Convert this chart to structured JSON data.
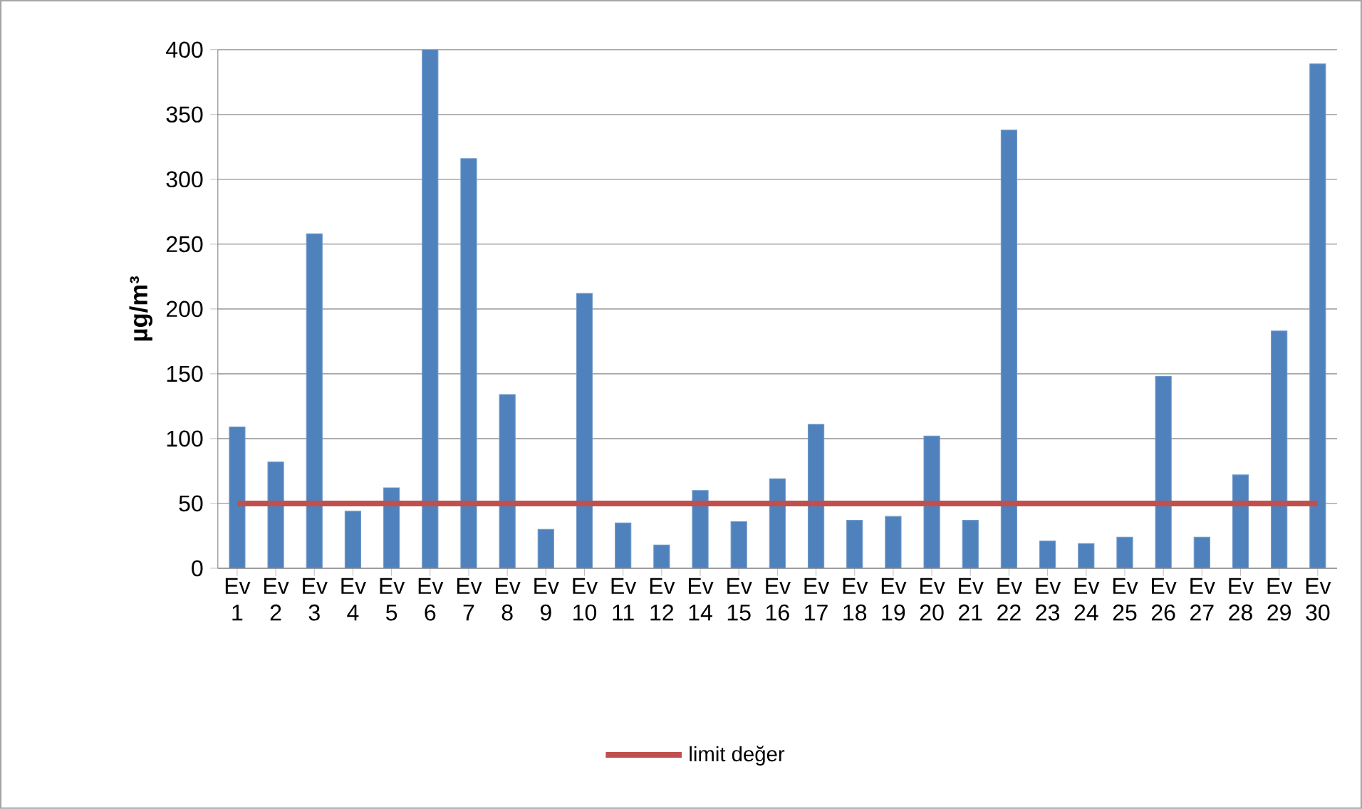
{
  "chart_data": {
    "type": "bar",
    "ylabel": "µg/m³",
    "categories": [
      "Ev 1",
      "Ev 2",
      "Ev 3",
      "Ev 4",
      "Ev 5",
      "Ev 6",
      "Ev 7",
      "Ev 8",
      "Ev 9",
      "Ev 10",
      "Ev 11",
      "Ev 12",
      "Ev 14",
      "Ev 15",
      "Ev 16",
      "Ev 17",
      "Ev 18",
      "Ev 19",
      "Ev 20",
      "Ev 21",
      "Ev 22",
      "Ev 23",
      "Ev 24",
      "Ev 25",
      "Ev 26",
      "Ev 27",
      "Ev 28",
      "Ev 29",
      "Ev 30"
    ],
    "series": [
      {
        "color": "#4f81bd",
        "values": [
          109,
          82,
          258,
          44,
          62,
          400,
          316,
          134,
          30,
          212,
          35,
          18,
          60,
          36,
          69,
          111,
          37,
          40,
          102,
          37,
          338,
          21,
          19,
          24,
          148,
          24,
          72,
          183,
          389
        ]
      },
      {
        "type": "line",
        "name": "limit değer",
        "color": "#c0504d",
        "values": [
          50,
          50,
          50,
          50,
          50,
          50,
          50,
          50,
          50,
          50,
          50,
          50,
          50,
          50,
          50,
          50,
          50,
          50,
          50,
          50,
          50,
          50,
          50,
          50,
          50,
          50,
          50,
          50,
          50
        ]
      }
    ],
    "ylim": [
      0,
      400
    ],
    "yticks": [
      0,
      50,
      100,
      150,
      200,
      250,
      300,
      350,
      400
    ],
    "grid": "y",
    "legend": "bottom",
    "marker": "none"
  }
}
